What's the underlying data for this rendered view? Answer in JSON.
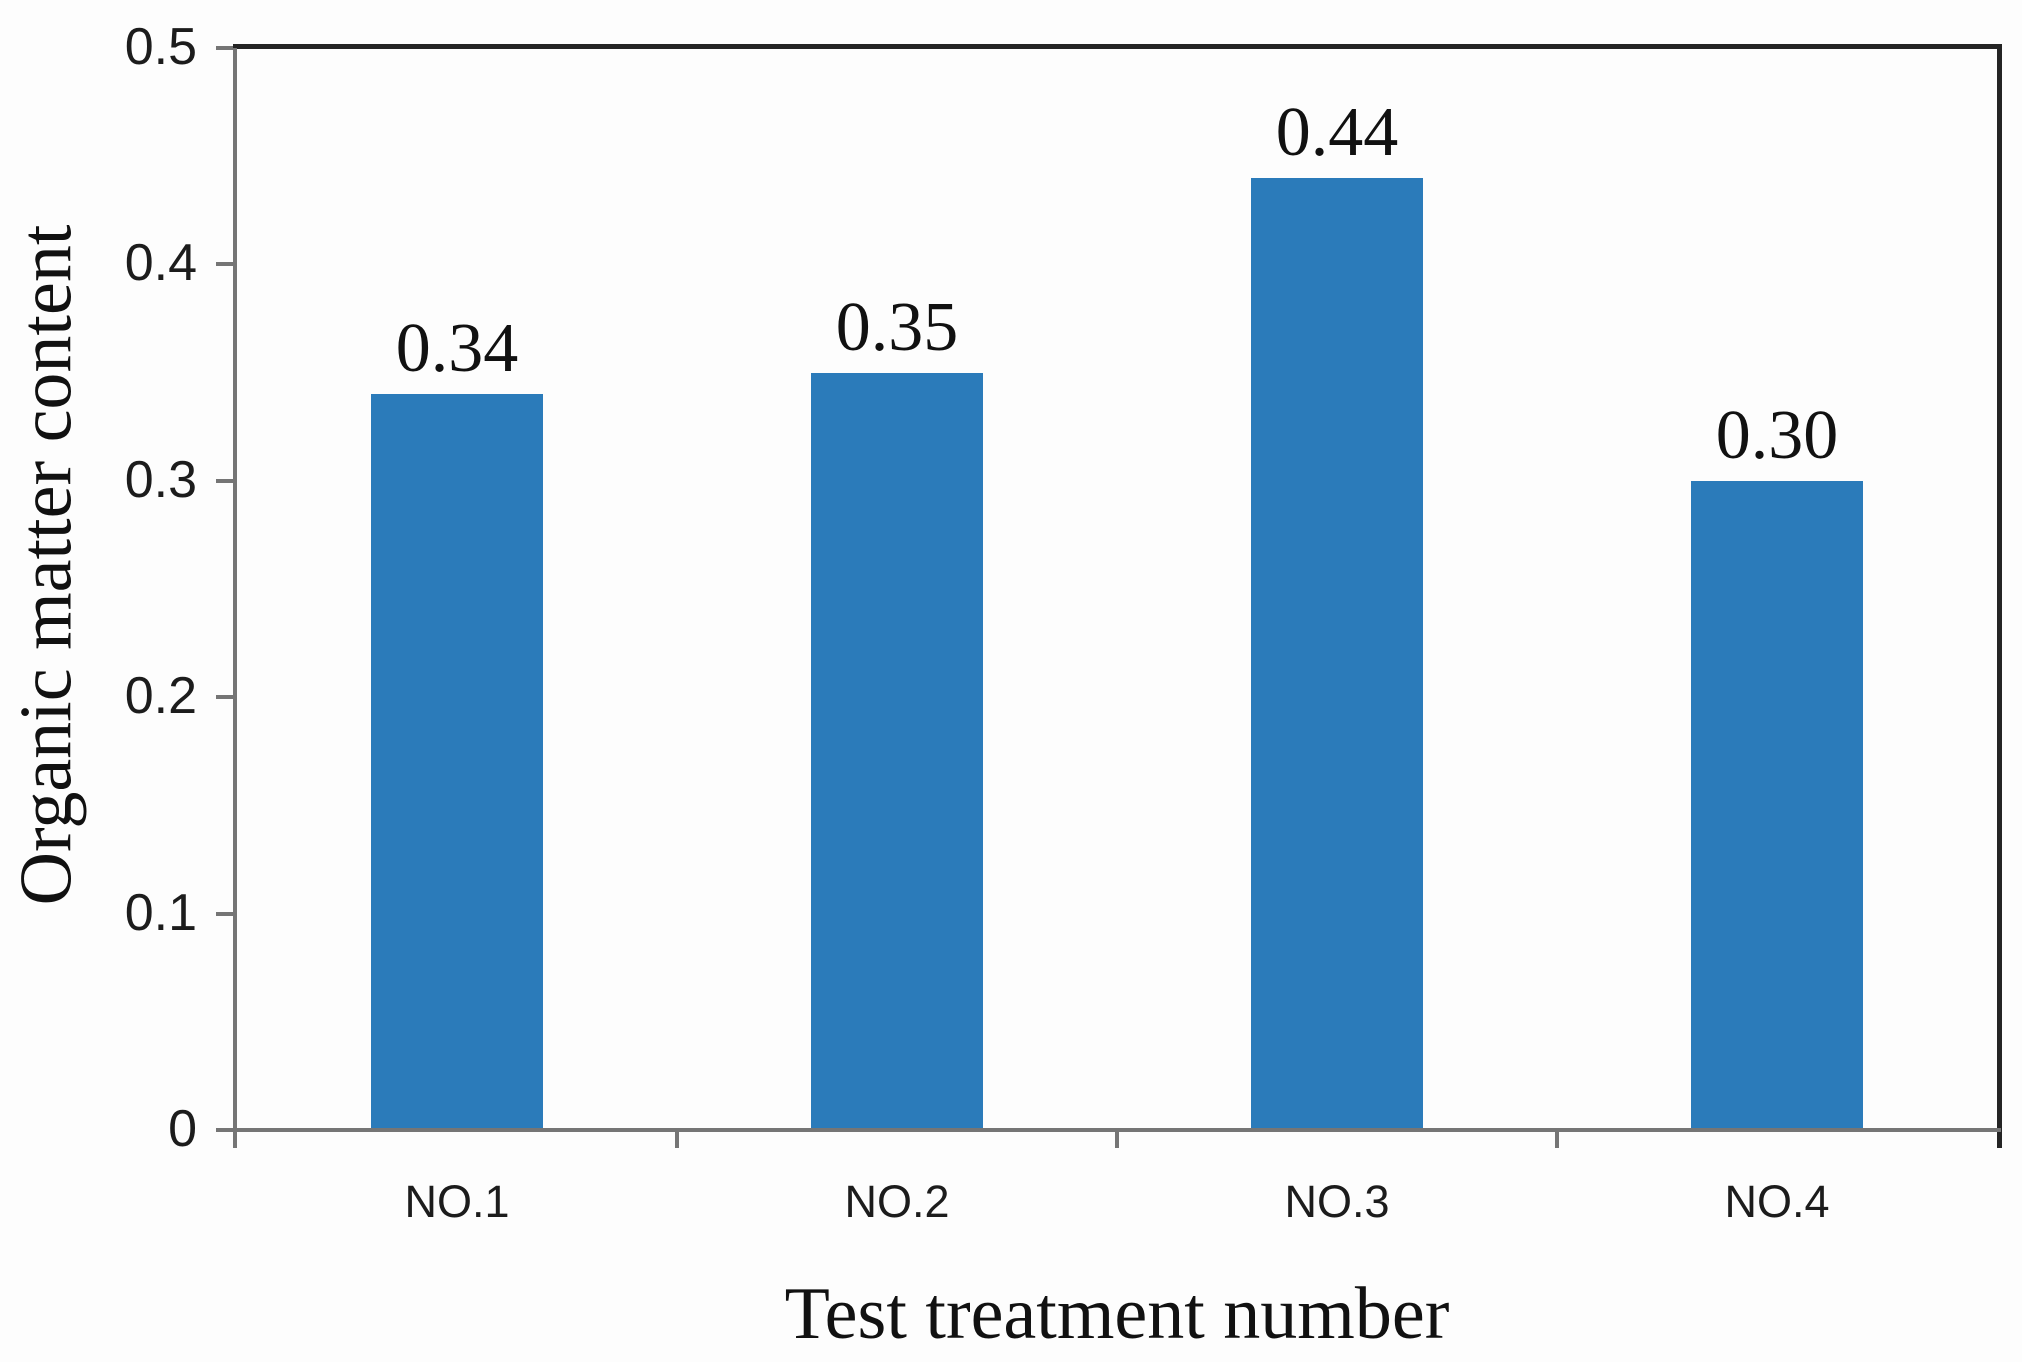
{
  "chart_data": {
    "type": "bar",
    "title": "",
    "xlabel": "Test treatment number",
    "ylabel": "Organic matter content",
    "categories": [
      "NO.1",
      "NO.2",
      "NO.3",
      "NO.4"
    ],
    "values": [
      0.34,
      0.35,
      0.44,
      0.3
    ],
    "data_labels": [
      "0.34",
      "0.35",
      "0.44",
      "0.30"
    ],
    "ylim": [
      0,
      0.5
    ],
    "yticks": [
      0,
      0.1,
      0.2,
      0.3,
      0.4,
      0.5
    ],
    "ytick_labels": [
      "0",
      "0.1",
      "0.2",
      "0.3",
      "0.4",
      "0.5"
    ],
    "grid": false,
    "legend_position": "none",
    "colors": {
      "bar": "#2b7bba",
      "axis_line": "#757575",
      "plot_border": "#242424",
      "text": "#111111",
      "background": "#fdfdfd"
    }
  }
}
